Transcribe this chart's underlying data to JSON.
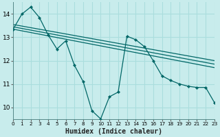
{
  "xlabel": "Humidex (Indice chaleur)",
  "background_color": "#c8ecec",
  "grid_color": "#aadddd",
  "line_color": "#006666",
  "xlim": [
    0,
    23
  ],
  "ylim": [
    9.5,
    14.5
  ],
  "yticks": [
    10,
    11,
    12,
    13,
    14
  ],
  "xticks": [
    0,
    1,
    2,
    3,
    4,
    5,
    6,
    7,
    8,
    9,
    10,
    11,
    12,
    13,
    14,
    15,
    16,
    17,
    18,
    19,
    20,
    21,
    22,
    23
  ],
  "xtick_labels": [
    "0",
    "1",
    "2",
    "3",
    "4",
    "5",
    "6",
    "7",
    "8",
    "9",
    "10",
    "11",
    "12",
    "13",
    "14",
    "15",
    "16",
    "17",
    "18",
    "19",
    "20",
    "21",
    "22",
    "23"
  ],
  "main_x": [
    0,
    1,
    2,
    3,
    4,
    5,
    6,
    7,
    8,
    9,
    10,
    11,
    12,
    13,
    14,
    15,
    16,
    17,
    18,
    19,
    20,
    21,
    22,
    23
  ],
  "main_y": [
    13.35,
    14.0,
    14.3,
    13.85,
    13.1,
    12.5,
    12.85,
    11.8,
    11.1,
    9.85,
    9.5,
    10.45,
    10.65,
    13.05,
    12.9,
    12.6,
    12.0,
    11.35,
    11.15,
    11.0,
    10.9,
    10.85,
    10.85,
    10.2
  ],
  "reg_lines": [
    {
      "x": [
        0,
        23
      ],
      "y": [
        13.55,
        12.0
      ]
    },
    {
      "x": [
        0,
        23
      ],
      "y": [
        13.45,
        11.85
      ]
    },
    {
      "x": [
        0,
        23
      ],
      "y": [
        13.35,
        11.7
      ]
    }
  ]
}
